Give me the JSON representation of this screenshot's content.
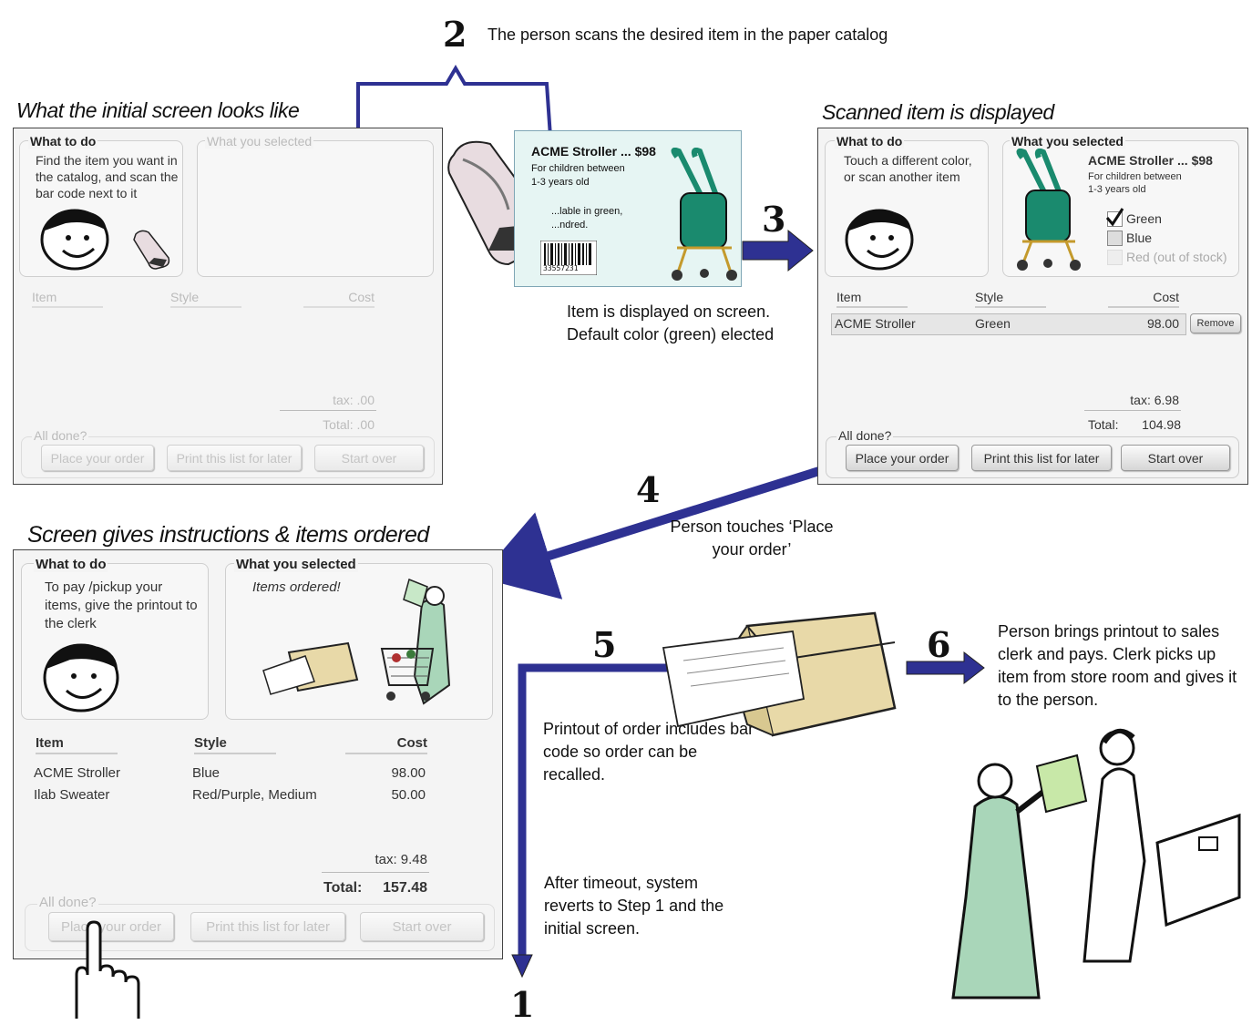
{
  "captions": {
    "initial": "What the initial screen looks like",
    "scanned": "Scanned item is displayed",
    "instructions": "Screen gives instructions & items ordered"
  },
  "steps": {
    "s1": {
      "num": "1"
    },
    "s2": {
      "num": "2",
      "text": "The person scans the desired item in the paper catalog"
    },
    "s3": {
      "num": "3",
      "text": "Item is displayed on screen. Default color (green) elected"
    },
    "s4": {
      "num": "4",
      "text": "Person touches ‘Place your order’"
    },
    "s5": {
      "num": "5",
      "text": "Printout of order includes bar code so order can be recalled."
    },
    "s6": {
      "num": "6",
      "text": "Person brings printout to sales clerk and pays. Clerk picks up item from store room and gives it to the person."
    },
    "timeout": {
      "text": "After timeout, system reverts to Step 1 and the initial screen."
    }
  },
  "catalog": {
    "title": "ACME Stroller  ... $98",
    "line1": "For children between",
    "line2": "1-3 years old",
    "line3": "...lable in green,",
    "line4": "...ndred.",
    "barcode": "33557231"
  },
  "screen1": {
    "what_to_do_title": "What to do",
    "what_to_do_text": "Find the item you want in the catalog, and scan the bar code next to it",
    "selected_title": "What you selected",
    "col_item": "Item",
    "col_style": "Style",
    "col_cost": "Cost",
    "tax": "tax:  .00",
    "total": "Total:   .00",
    "all_done": "All done?",
    "btn_place": "Place your order",
    "btn_print": "Print this list for later",
    "btn_start": "Start over"
  },
  "screen2": {
    "what_to_do_title": "What to do",
    "what_to_do_text": "Touch a different color, or scan another item",
    "selected_title": "What you selected",
    "product_title": "ACME Stroller   ... $98",
    "product_desc1": "For children between",
    "product_desc2": "1-3 years old",
    "opt_green": "Green",
    "opt_blue": "Blue",
    "opt_red": "Red (out of stock)",
    "col_item": "Item",
    "col_style": "Style",
    "col_cost": "Cost",
    "row_item": "ACME Stroller",
    "row_style": "Green",
    "row_cost": "98.00",
    "remove": "Remove",
    "tax": "tax: 6.98",
    "total_label": "Total:",
    "total_value": "104.98",
    "all_done": "All done?",
    "btn_place": "Place your order",
    "btn_print": "Print this list for later",
    "btn_start": "Start over"
  },
  "screen3": {
    "what_to_do_title": "What to do",
    "what_to_do_text": "To pay /pickup your items, give the printout to the clerk",
    "selected_title": "What you selected",
    "ordered_text": "Items ordered!",
    "col_item": "Item",
    "col_style": "Style",
    "col_cost": "Cost",
    "rows": [
      {
        "item": "ACME Stroller",
        "style": "Blue",
        "cost": "98.00"
      },
      {
        "item": "Ilab Sweater",
        "style": "Red/Purple, Medium",
        "cost": "50.00"
      }
    ],
    "tax": "tax: 9.48",
    "total_label": "Total:",
    "total_value": "157.48",
    "all_done": "All done?",
    "btn_place": "Place your order",
    "btn_print": "Print this list for later",
    "btn_start": "Start over"
  },
  "colors": {
    "arrow": "#2e3192",
    "green_stroller": "#1a8a6e",
    "clipart_green": "#a9d6b9"
  }
}
